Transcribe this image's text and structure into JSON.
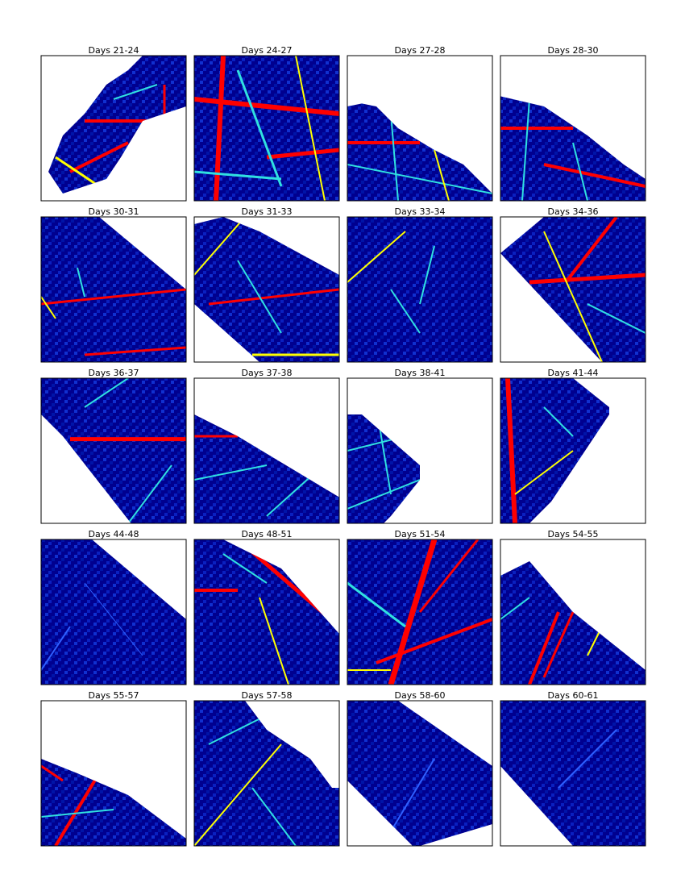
{
  "panels": [
    {
      "title": "Days 21-24"
    },
    {
      "title": "Days 24-27"
    },
    {
      "title": "Days 27-28"
    },
    {
      "title": "Days 28-30"
    },
    {
      "title": "Days 30-31"
    },
    {
      "title": "Days 31-33"
    },
    {
      "title": "Days 33-34"
    },
    {
      "title": "Days 34-36"
    },
    {
      "title": "Days 36-37"
    },
    {
      "title": "Days 37-38"
    },
    {
      "title": "Days 38-41"
    },
    {
      "title": "Days 41-44"
    },
    {
      "title": "Days 44-48"
    },
    {
      "title": "Days 48-51"
    },
    {
      "title": "Days 51-54"
    },
    {
      "title": "Days 54-55"
    },
    {
      "title": "Days 55-57"
    },
    {
      "title": "Days 57-58"
    },
    {
      "title": "Days 58-60"
    },
    {
      "title": "Days 60-61"
    }
  ]
}
